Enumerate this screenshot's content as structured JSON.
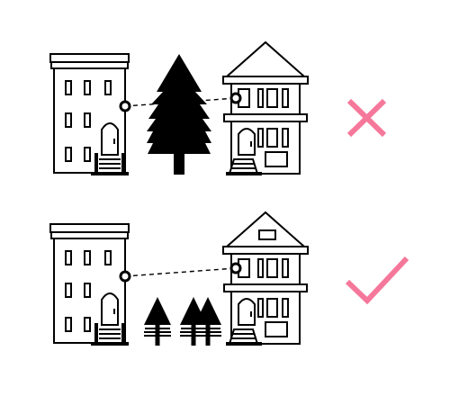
{
  "colors": {
    "ink": "#000000",
    "paper": "#ffffff",
    "verdict": "#f5789b"
  },
  "rows": [
    {
      "id": "blocked",
      "obstacle": "tall-tree",
      "link_status": "obstructed",
      "verdict_icon": "cross-icon"
    },
    {
      "id": "clear",
      "obstacle": "short-trees",
      "short_tree_count": 3,
      "link_status": "clear",
      "verdict_icon": "check-icon"
    }
  ]
}
